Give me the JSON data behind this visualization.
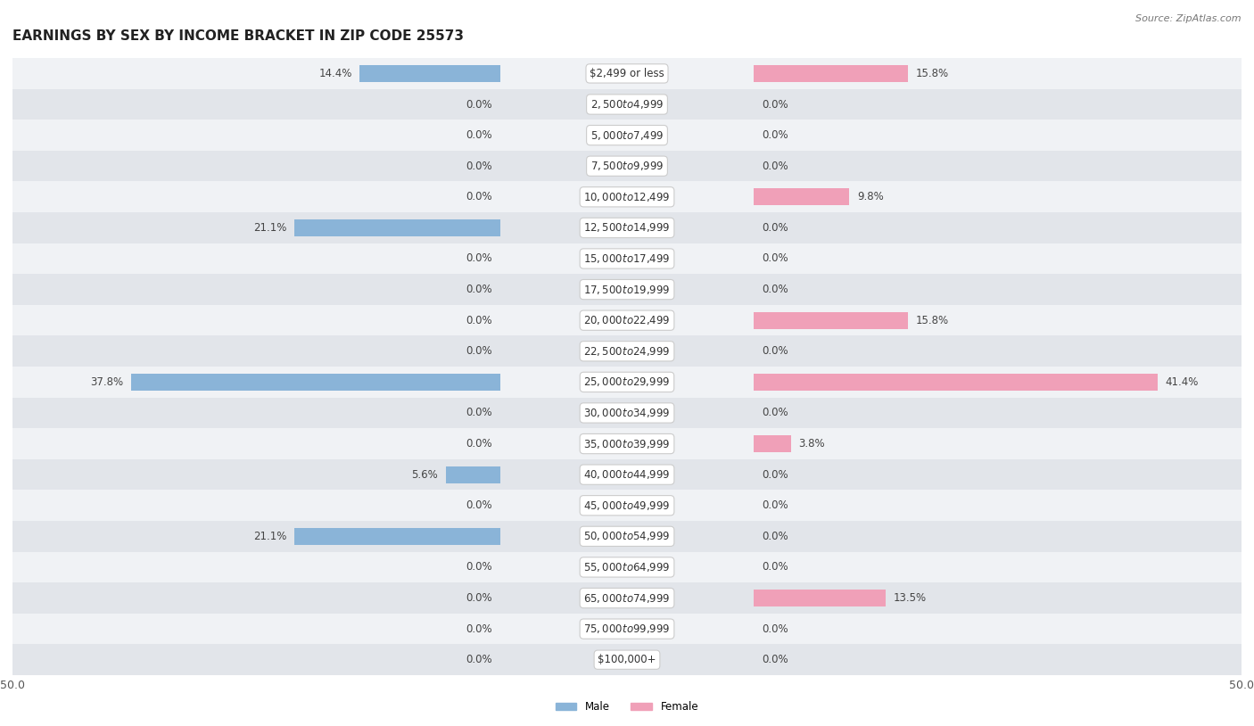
{
  "title": "EARNINGS BY SEX BY INCOME BRACKET IN ZIP CODE 25573",
  "source": "Source: ZipAtlas.com",
  "categories": [
    "$2,499 or less",
    "$2,500 to $4,999",
    "$5,000 to $7,499",
    "$7,500 to $9,999",
    "$10,000 to $12,499",
    "$12,500 to $14,999",
    "$15,000 to $17,499",
    "$17,500 to $19,999",
    "$20,000 to $22,499",
    "$22,500 to $24,999",
    "$25,000 to $29,999",
    "$30,000 to $34,999",
    "$35,000 to $39,999",
    "$40,000 to $44,999",
    "$45,000 to $49,999",
    "$50,000 to $54,999",
    "$55,000 to $64,999",
    "$65,000 to $74,999",
    "$75,000 to $99,999",
    "$100,000+"
  ],
  "male_values": [
    14.4,
    0.0,
    0.0,
    0.0,
    0.0,
    21.1,
    0.0,
    0.0,
    0.0,
    0.0,
    37.8,
    0.0,
    0.0,
    5.6,
    0.0,
    21.1,
    0.0,
    0.0,
    0.0,
    0.0
  ],
  "female_values": [
    15.8,
    0.0,
    0.0,
    0.0,
    9.8,
    0.0,
    0.0,
    0.0,
    15.8,
    0.0,
    41.4,
    0.0,
    3.8,
    0.0,
    0.0,
    0.0,
    0.0,
    13.5,
    0.0,
    0.0
  ],
  "male_color": "#8ab4d8",
  "female_color": "#f0a0b8",
  "row_bg_light": "#f0f2f5",
  "row_bg_dark": "#e2e5ea",
  "row_pill_color": "#e8eaf0",
  "xlim": 50.0,
  "bar_max": 50.0,
  "title_fontsize": 11,
  "label_fontsize": 8.5,
  "cat_fontsize": 8.5,
  "tick_fontsize": 9,
  "source_fontsize": 8,
  "background_color": "#ffffff"
}
